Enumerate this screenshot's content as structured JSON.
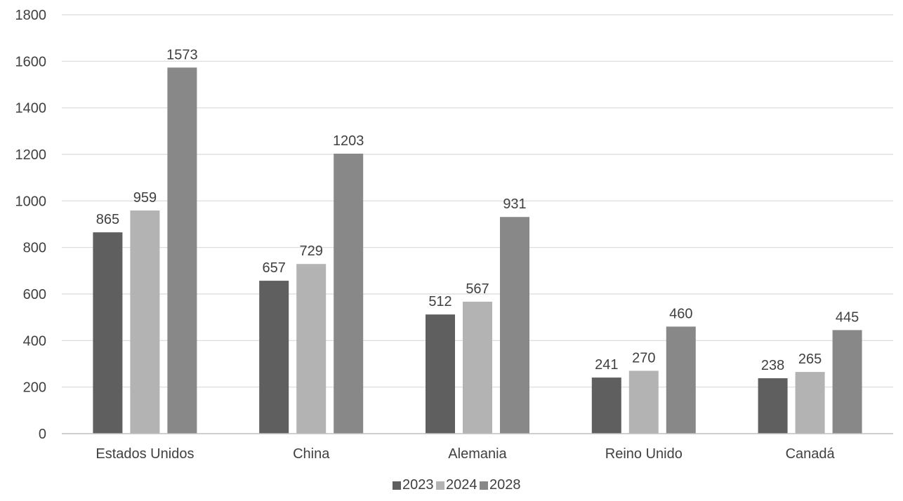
{
  "chart_data": {
    "type": "bar",
    "categories": [
      "Estados Unidos",
      "China",
      "Alemania",
      "Reino Unido",
      "Canadá"
    ],
    "series": [
      {
        "name": "2023",
        "values": [
          865,
          657,
          512,
          241,
          238
        ],
        "color": "#5f5f5f"
      },
      {
        "name": "2024",
        "values": [
          959,
          729,
          567,
          270,
          265
        ],
        "color": "#b3b3b3"
      },
      {
        "name": "2028",
        "values": [
          1573,
          1203,
          931,
          460,
          445
        ],
        "color": "#888888"
      }
    ],
    "ylim": [
      0,
      1800
    ],
    "yticks": [
      "0",
      "200",
      "400",
      "600",
      "800",
      "1000",
      "1200",
      "1400",
      "1600",
      "1800"
    ],
    "grid": true,
    "legend_position": "bottom",
    "data_labels": true
  }
}
